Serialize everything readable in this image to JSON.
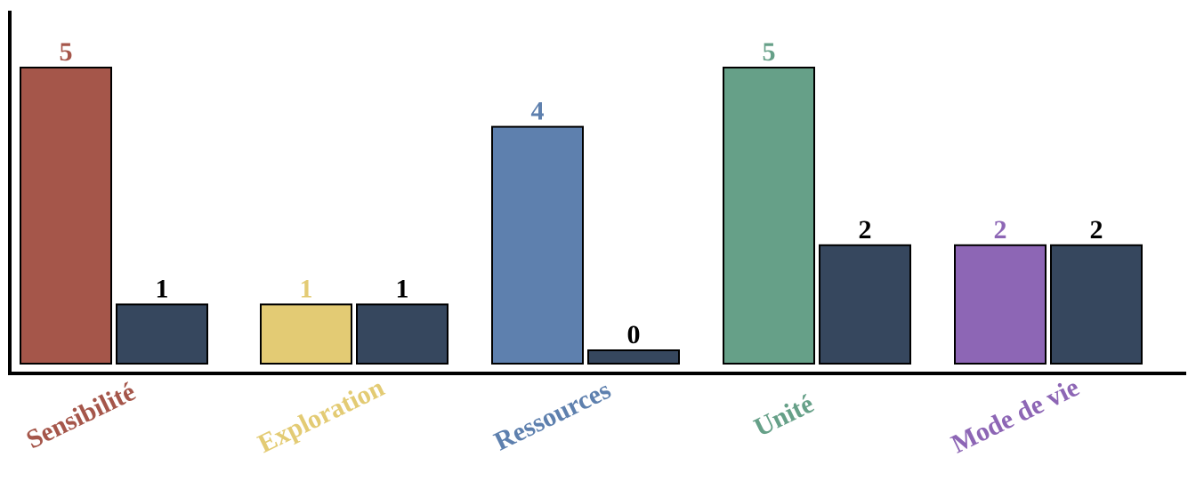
{
  "chart_data": {
    "type": "bar",
    "categories": [
      "Sensibilité",
      "Exploration",
      "Ressources",
      "Unité",
      "Mode de vie"
    ],
    "category_colors": [
      "#a5564a",
      "#e3cb74",
      "#5e80ae",
      "#66a088",
      "#8d66b5"
    ],
    "series": [
      {
        "values": [
          5,
          1,
          4,
          5,
          2
        ]
      },
      {
        "values": [
          1,
          1,
          0,
          2,
          2
        ],
        "color": "#36475e"
      }
    ],
    "ylim": [
      0,
      5.1
    ],
    "grid": false,
    "legend": "none"
  }
}
